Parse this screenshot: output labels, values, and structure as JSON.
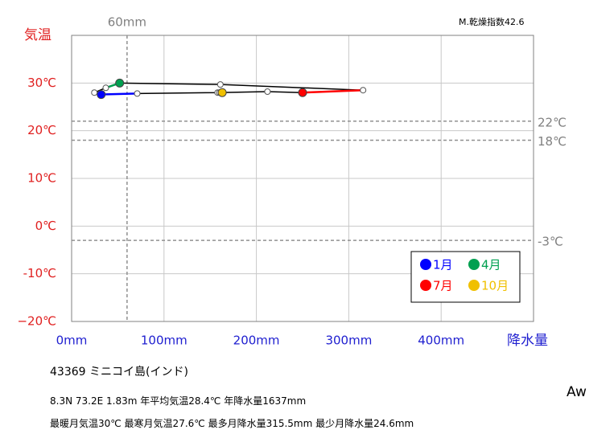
{
  "chart_data": {
    "type": "climograph",
    "title_right": "M.乾燥指数42.6",
    "y_label": "気温",
    "x_label": "降水量",
    "xlim": [
      0,
      500
    ],
    "xticks": [
      {
        "value": 0,
        "label": "0mm"
      },
      {
        "value": 100,
        "label": "100mm"
      },
      {
        "value": 200,
        "label": "200mm"
      },
      {
        "value": 300,
        "label": "300mm"
      },
      {
        "value": 400,
        "label": "400mm"
      }
    ],
    "ylim": [
      -20,
      40
    ],
    "yticks": [
      {
        "value": 30,
        "label": "30℃"
      },
      {
        "value": 20,
        "label": "20℃"
      },
      {
        "value": 10,
        "label": "10℃"
      },
      {
        "value": 0,
        "label": "0℃"
      },
      {
        "value": -10,
        "label": "-10℃"
      },
      {
        "value": -20,
        "label": "−20℃"
      }
    ],
    "grid": true,
    "reference_lines": [
      {
        "value": 22,
        "label": "22℃"
      },
      {
        "value": 18,
        "label": "18℃"
      },
      {
        "value": -3,
        "label": "-3℃"
      }
    ],
    "vertical_line": {
      "value": 60,
      "label": "60mm"
    },
    "legend": "lower right",
    "series": [
      {
        "color": "#000000",
        "x": [
          32,
          24.6,
          37,
          52,
          161,
          315.5,
          250,
          212,
          158,
          163,
          160,
          71
        ],
        "values": [
          27.6,
          28.0,
          29.0,
          30.0,
          29.7,
          28.5,
          28.0,
          28.2,
          28.0,
          28.0,
          28.0,
          27.8
        ]
      },
      {
        "name": "1月",
        "color": "#0000ff",
        "x": [
          71,
          32
        ],
        "values": [
          27.8,
          27.6
        ]
      },
      {
        "name": "4月",
        "color": "#00a050",
        "x": [
          37,
          52
        ],
        "values": [
          29.0,
          30.0
        ]
      },
      {
        "name": "7月",
        "color": "#ff0000",
        "x": [
          315.5,
          250
        ],
        "values": [
          28.5,
          28.0
        ]
      },
      {
        "name": "10月",
        "color": "#f0c000",
        "x": [
          158,
          163
        ],
        "values": [
          28.0,
          28.0
        ]
      }
    ]
  },
  "station": {
    "name": "43369  ミニコイ島(インド)",
    "line1": "8.3N  73.2E 1.83m  年平均気温28.4℃ 年降水量1637mm",
    "line2": "最暖月気温30℃ 最寒月気温27.6℃ 最多月降水量315.5mm 最少月降水量24.6mm",
    "climate": "Aw"
  }
}
